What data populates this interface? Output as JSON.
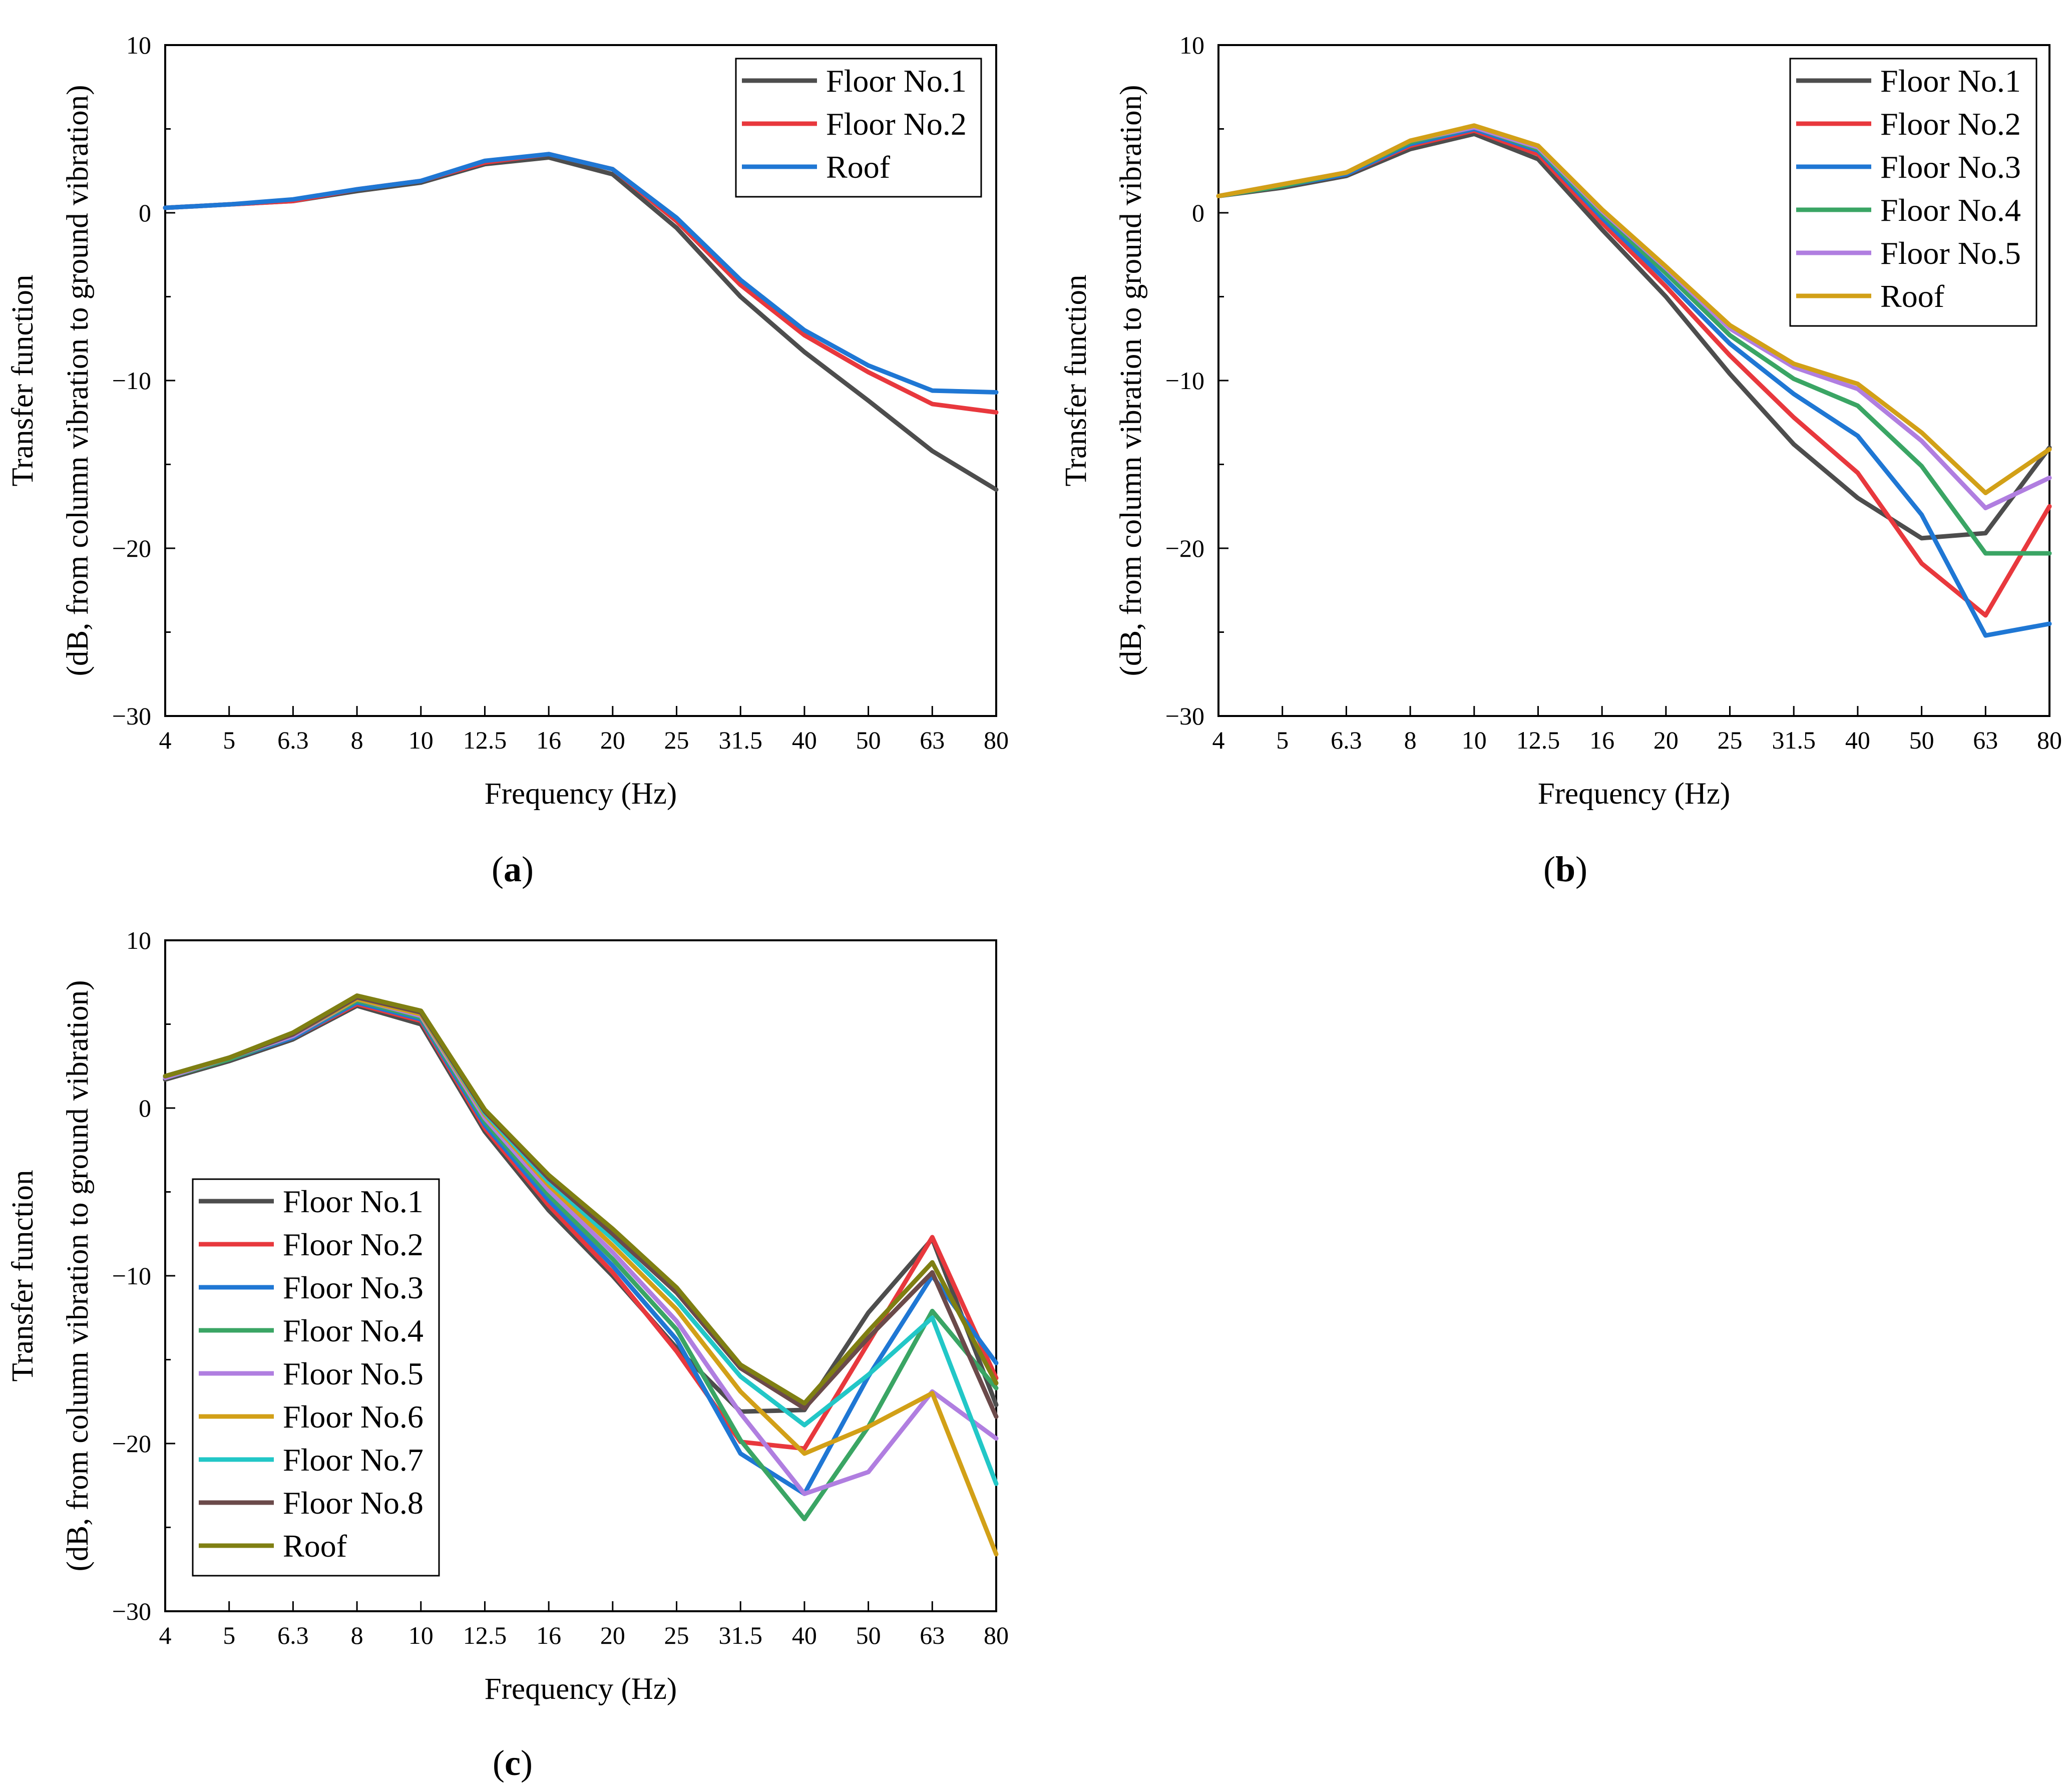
{
  "figure": {
    "panels": [
      {
        "id": "a",
        "label_open": "(",
        "label_letter": "a",
        "label_close": ")"
      },
      {
        "id": "b",
        "label_open": "(",
        "label_letter": "b",
        "label_close": ")"
      },
      {
        "id": "c",
        "label_open": "(",
        "label_letter": "c",
        "label_close": ")"
      }
    ]
  },
  "chart_data": [
    {
      "type": "line",
      "panel": "a",
      "xlabel": "Frequency (Hz)",
      "ylabel_line1": "Transfer function",
      "ylabel_line2": "(dB, from column vibration to ground vibration)",
      "categories": [
        "4",
        "5",
        "6.3",
        "8",
        "10",
        "12.5",
        "16",
        "20",
        "25",
        "31.5",
        "40",
        "50",
        "63",
        "80"
      ],
      "ylim": [
        -30,
        10
      ],
      "yticks": [
        -30,
        -20,
        -10,
        0,
        10
      ],
      "ytick_labels": [
        "−30",
        "−20",
        "−10",
        "0",
        "10"
      ],
      "legend_position": "top-right",
      "series": [
        {
          "name": "Floor No.1",
          "color": "#4d4d4d",
          "values": [
            0.3,
            0.5,
            0.7,
            1.3,
            1.8,
            2.9,
            3.3,
            2.3,
            -0.9,
            -5.0,
            -8.3,
            -11.2,
            -14.2,
            -16.5
          ]
        },
        {
          "name": "Floor No.2",
          "color": "#e8383d",
          "values": [
            0.3,
            0.5,
            0.7,
            1.4,
            1.9,
            3.0,
            3.5,
            2.6,
            -0.5,
            -4.3,
            -7.3,
            -9.5,
            -11.4,
            -11.9
          ]
        },
        {
          "name": "Roof",
          "color": "#1f77d4",
          "values": [
            0.3,
            0.5,
            0.8,
            1.4,
            1.9,
            3.1,
            3.5,
            2.6,
            -0.3,
            -4.0,
            -7.0,
            -9.1,
            -10.6,
            -10.7
          ]
        }
      ]
    },
    {
      "type": "line",
      "panel": "b",
      "xlabel": "Frequency (Hz)",
      "ylabel_line1": "Transfer function",
      "ylabel_line2": "(dB, from column vibration to ground vibration)",
      "categories": [
        "4",
        "5",
        "6.3",
        "8",
        "10",
        "12.5",
        "16",
        "20",
        "25",
        "31.5",
        "40",
        "50",
        "63",
        "80"
      ],
      "ylim": [
        -30,
        10
      ],
      "yticks": [
        -30,
        -20,
        -10,
        0,
        10
      ],
      "ytick_labels": [
        "−30",
        "−20",
        "−10",
        "0",
        "10"
      ],
      "legend_position": "top-right",
      "series": [
        {
          "name": "Floor No.1",
          "color": "#4d4d4d",
          "values": [
            1.0,
            1.5,
            2.2,
            3.8,
            4.7,
            3.2,
            -1.0,
            -5.0,
            -9.6,
            -13.8,
            -17.0,
            -19.4,
            -19.1,
            -14.0
          ]
        },
        {
          "name": "Floor No.2",
          "color": "#e8383d",
          "values": [
            1.0,
            1.6,
            2.3,
            4.0,
            4.9,
            3.5,
            -0.6,
            -4.4,
            -8.5,
            -12.2,
            -15.5,
            -20.9,
            -24.0,
            -17.5
          ]
        },
        {
          "name": "Floor No.3",
          "color": "#1f77d4",
          "values": [
            1.0,
            1.6,
            2.3,
            4.1,
            5.0,
            3.7,
            -0.3,
            -4.0,
            -7.8,
            -10.8,
            -13.3,
            -18.0,
            -25.2,
            -24.5
          ]
        },
        {
          "name": "Floor No.4",
          "color": "#3aa564",
          "values": [
            1.0,
            1.6,
            2.4,
            4.2,
            5.1,
            3.8,
            -0.1,
            -3.6,
            -7.3,
            -9.9,
            -11.5,
            -15.1,
            -20.3,
            -20.3
          ]
        },
        {
          "name": "Floor No.5",
          "color": "#b07ee0",
          "values": [
            1.0,
            1.7,
            2.4,
            4.3,
            5.1,
            3.9,
            0.1,
            -3.3,
            -6.9,
            -9.2,
            -10.5,
            -13.6,
            -17.6,
            -15.8
          ]
        },
        {
          "name": "Roof",
          "color": "#d2a017",
          "values": [
            1.0,
            1.7,
            2.4,
            4.3,
            5.2,
            4.0,
            0.2,
            -3.2,
            -6.7,
            -9.0,
            -10.2,
            -13.1,
            -16.7,
            -14.1
          ]
        }
      ]
    },
    {
      "type": "line",
      "panel": "c",
      "xlabel": "Frequency (Hz)",
      "ylabel_line1": "Transfer function",
      "ylabel_line2": "(dB, from column vibration to ground vibration)",
      "categories": [
        "4",
        "5",
        "6.3",
        "8",
        "10",
        "12.5",
        "16",
        "20",
        "25",
        "31.5",
        "40",
        "50",
        "63",
        "80"
      ],
      "ylim": [
        -30,
        10
      ],
      "yticks": [
        -30,
        -20,
        -10,
        0,
        10
      ],
      "ytick_labels": [
        "−30",
        "−20",
        "−10",
        "0",
        "10"
      ],
      "legend_position": "center-left",
      "series": [
        {
          "name": "Floor No.1",
          "color": "#4d4d4d",
          "values": [
            1.7,
            2.8,
            4.1,
            6.1,
            5.0,
            -1.4,
            -6.1,
            -10.0,
            -14.3,
            -18.1,
            -18.0,
            -12.2,
            -7.8,
            -17.7
          ]
        },
        {
          "name": "Floor No.2",
          "color": "#e8383d",
          "values": [
            1.8,
            2.9,
            4.2,
            6.2,
            5.2,
            -1.2,
            -5.8,
            -9.8,
            -14.5,
            -19.9,
            -20.3,
            -14.0,
            -7.7,
            -16.1
          ]
        },
        {
          "name": "Floor No.3",
          "color": "#1f77d4",
          "values": [
            1.8,
            2.9,
            4.2,
            6.3,
            5.3,
            -1.0,
            -5.5,
            -9.4,
            -13.8,
            -20.6,
            -23.0,
            -16.0,
            -10.0,
            -15.2
          ]
        },
        {
          "name": "Floor No.4",
          "color": "#3aa564",
          "values": [
            1.8,
            2.9,
            4.3,
            6.4,
            5.4,
            -0.8,
            -5.2,
            -9.0,
            -13.2,
            -19.8,
            -24.5,
            -19.0,
            -12.1,
            -16.7
          ]
        },
        {
          "name": "Floor No.5",
          "color": "#b07ee0",
          "values": [
            1.8,
            3.0,
            4.3,
            6.5,
            5.5,
            -0.6,
            -4.9,
            -8.6,
            -12.7,
            -18.2,
            -23.0,
            -21.7,
            -16.9,
            -19.7
          ]
        },
        {
          "name": "Floor No.6",
          "color": "#d2a017",
          "values": [
            1.9,
            3.0,
            4.4,
            6.5,
            5.6,
            -0.4,
            -4.6,
            -8.2,
            -12.0,
            -16.9,
            -20.6,
            -19.0,
            -17.0,
            -26.6
          ]
        },
        {
          "name": "Floor No.7",
          "color": "#22c7c7",
          "values": [
            1.9,
            3.0,
            4.4,
            6.6,
            5.7,
            -0.3,
            -4.4,
            -7.8,
            -11.5,
            -16.0,
            -18.9,
            -15.9,
            -12.5,
            -22.4
          ]
        },
        {
          "name": "Floor No.8",
          "color": "#6b4a4a",
          "values": [
            1.9,
            3.0,
            4.4,
            6.6,
            5.7,
            -0.2,
            -4.2,
            -7.5,
            -11.0,
            -15.5,
            -17.9,
            -13.7,
            -9.8,
            -18.4
          ]
        },
        {
          "name": "Roof",
          "color": "#7f7f12",
          "values": [
            1.9,
            3.0,
            4.5,
            6.7,
            5.8,
            -0.1,
            -4.0,
            -7.2,
            -10.7,
            -15.3,
            -17.6,
            -13.3,
            -9.2,
            -16.4
          ]
        }
      ]
    }
  ]
}
